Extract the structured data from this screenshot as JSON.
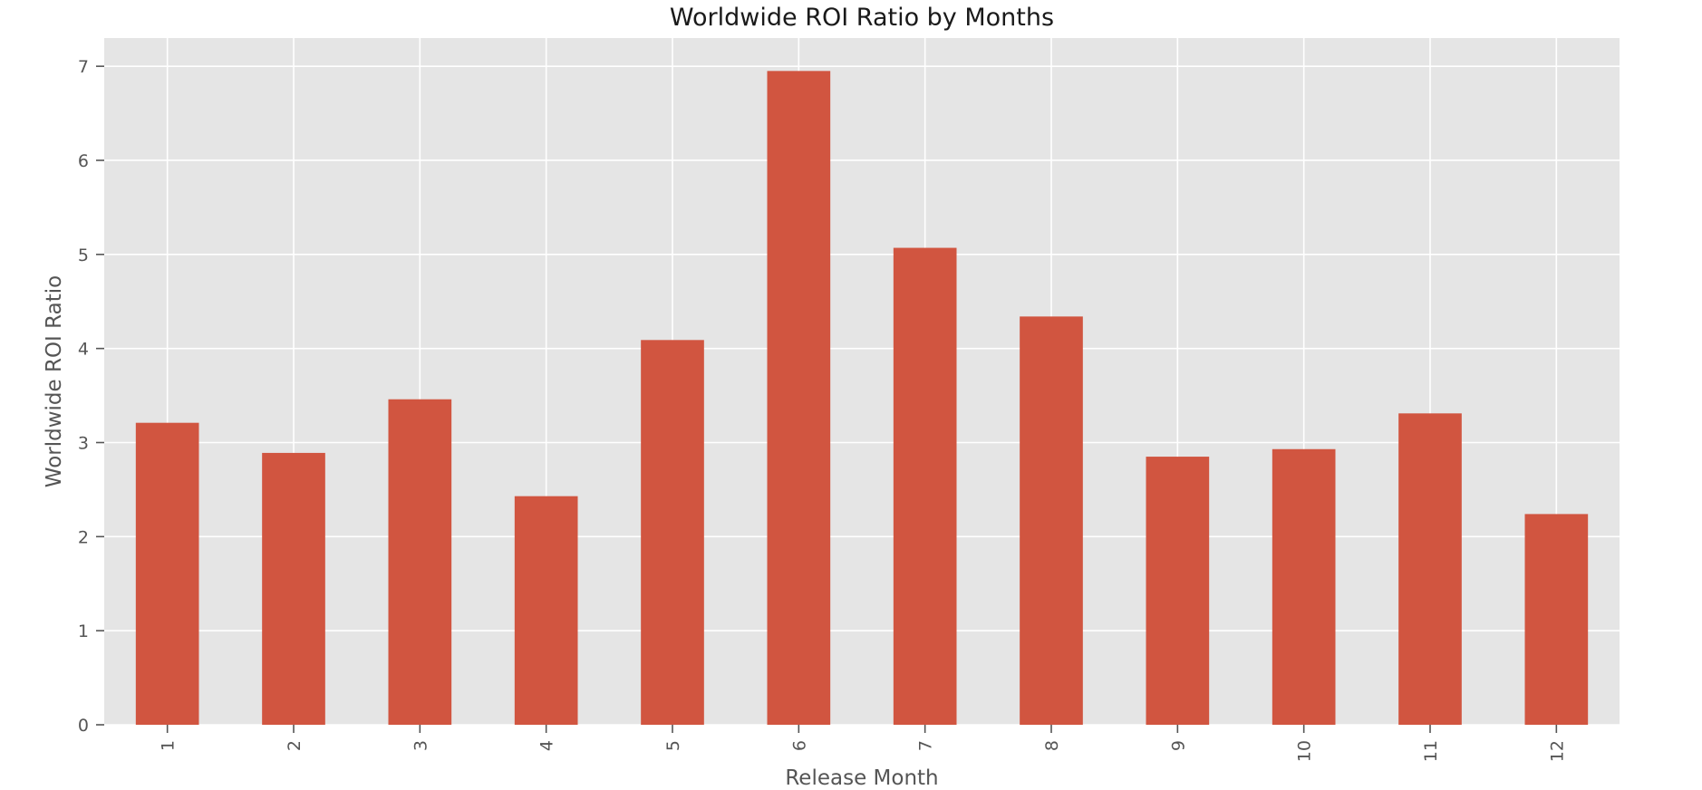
{
  "chart_data": {
    "type": "bar",
    "title": "Worldwide ROI Ratio by Months",
    "xlabel": "Release Month",
    "ylabel": "Worldwide ROI Ratio",
    "categories": [
      "1",
      "2",
      "3",
      "4",
      "5",
      "6",
      "7",
      "8",
      "9",
      "10",
      "11",
      "12"
    ],
    "values": [
      3.21,
      2.89,
      3.46,
      2.43,
      4.09,
      6.95,
      5.07,
      4.34,
      2.85,
      2.93,
      3.31,
      2.24
    ],
    "yticks": [
      "0",
      "1",
      "2",
      "3",
      "4",
      "5",
      "6",
      "7"
    ],
    "ylim": [
      0,
      7.3
    ],
    "grid": true,
    "legend": "none",
    "colors": {
      "bar": "#d15540",
      "background": "#e5e5e5",
      "grid": "#ffffff"
    }
  }
}
